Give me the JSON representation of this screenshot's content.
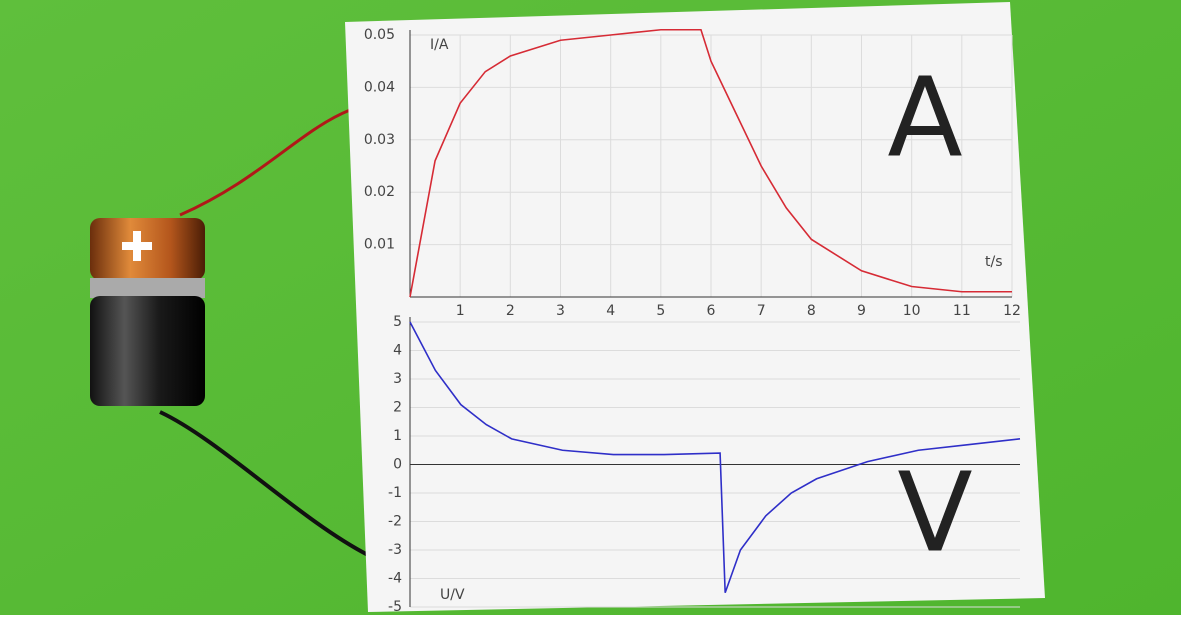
{
  "chart_data": [
    {
      "type": "line",
      "y_label": "I/A",
      "x_label": "t/s",
      "annotation": "A",
      "x": [
        0,
        0.5,
        1,
        1.5,
        2,
        3,
        4,
        5,
        5.8,
        6,
        6.5,
        7,
        7.5,
        8,
        9,
        10,
        11,
        12
      ],
      "series": [
        {
          "color": "#d62b35",
          "values": [
            0,
            0.026,
            0.037,
            0.043,
            0.046,
            0.049,
            0.05,
            0.051,
            0.051,
            0.045,
            0.035,
            0.025,
            0.017,
            0.011,
            0.005,
            0.002,
            0.001,
            0.001
          ]
        }
      ],
      "xlim": [
        0,
        12
      ],
      "xticks": [
        1,
        2,
        3,
        4,
        5,
        6,
        7,
        8,
        9,
        10,
        11,
        12
      ],
      "ylim": [
        0,
        0.05
      ],
      "yticks": [
        0.01,
        0.02,
        0.03,
        0.04,
        0.05
      ],
      "grid": true
    },
    {
      "type": "line",
      "y_label": "U/V",
      "annotation": "V",
      "x": [
        0,
        0.5,
        1,
        1.5,
        2,
        3,
        4,
        5,
        6.1,
        6.2,
        6.5,
        7,
        7.5,
        8,
        9,
        10,
        11,
        12
      ],
      "series": [
        {
          "color": "#2f2fc8",
          "values": [
            5,
            3.3,
            2.1,
            1.4,
            0.9,
            0.5,
            0.35,
            0.35,
            0.4,
            -4.5,
            -3,
            -1.8,
            -1,
            -0.5,
            0.1,
            0.5,
            0.7,
            0.9
          ]
        }
      ],
      "xlim": [
        0,
        12
      ],
      "ylim": [
        -5,
        5
      ],
      "yticks": [
        5,
        4,
        3,
        2,
        1,
        0,
        -1,
        -2,
        -3,
        -4,
        -5
      ],
      "grid": true
    }
  ]
}
